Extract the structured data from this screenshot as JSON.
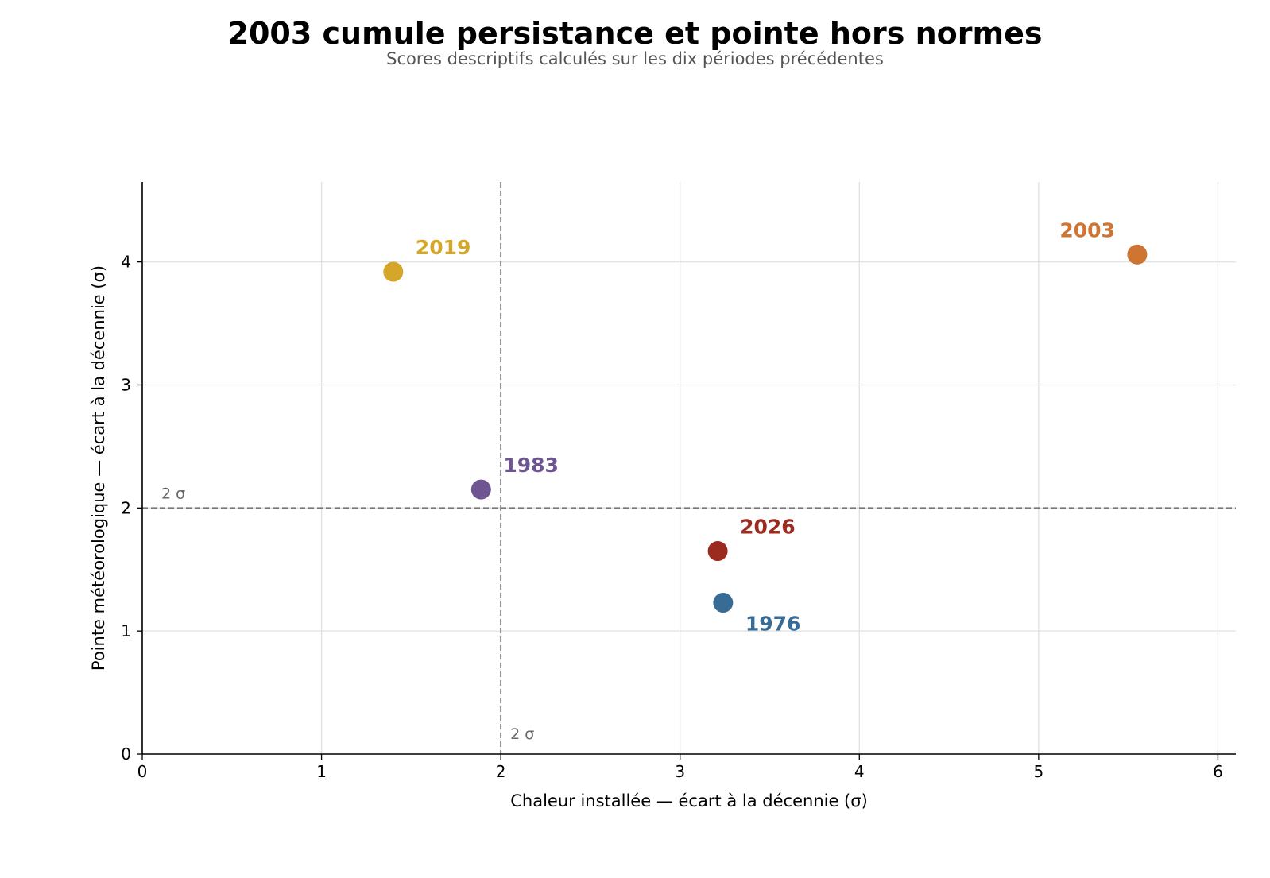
{
  "chart_data": {
    "type": "scatter",
    "title": "2003 cumule persistance et pointe hors normes",
    "subtitle": "Scores descriptifs calculés sur les dix périodes précédentes",
    "xlabel": "Chaleur installée — écart à la décennie (σ)",
    "ylabel": "Pointe météorologique — écart à la décennie (σ)",
    "xlim": [
      0,
      6.1
    ],
    "ylim": [
      0,
      4.65
    ],
    "xticks": [
      "0",
      "1",
      "2",
      "3",
      "4",
      "5",
      "6"
    ],
    "yticks": [
      "0",
      "1",
      "2",
      "3",
      "4"
    ],
    "grid": true,
    "threshold": {
      "x": 2,
      "y": 2,
      "x_label": "2 σ",
      "y_label": "2 σ",
      "color": "#777777"
    },
    "points": [
      {
        "label": "2019",
        "x": 1.4,
        "y": 3.92,
        "color": "#d4a62a",
        "label_pos": "top-right"
      },
      {
        "label": "2003",
        "x": 5.55,
        "y": 4.06,
        "color": "#cf7533",
        "label_pos": "top-left"
      },
      {
        "label": "1983",
        "x": 1.89,
        "y": 2.15,
        "color": "#6e5490",
        "label_pos": "top-right"
      },
      {
        "label": "2026",
        "x": 3.21,
        "y": 1.65,
        "color": "#9b2a1f",
        "label_pos": "top-right"
      },
      {
        "label": "1976",
        "x": 3.24,
        "y": 1.23,
        "color": "#386c96",
        "label_pos": "bottom-right"
      }
    ]
  }
}
